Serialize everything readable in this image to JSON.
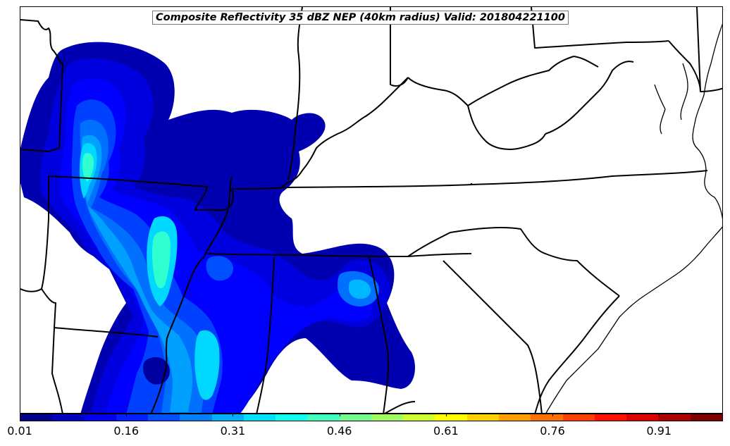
{
  "title": "Composite Reflectivity 35 dBZ NEP (40km radius) Valid: 201804221100",
  "colorbar": {
    "colors": [
      "#00008f",
      "#0000bf",
      "#0000ef",
      "#0020ff",
      "#0050ff",
      "#0080ff",
      "#00b0ff",
      "#00e0ff",
      "#10ffef",
      "#40ffbf",
      "#70ff8f",
      "#a0ff60",
      "#d0ff30",
      "#ffff00",
      "#ffd000",
      "#ffa000",
      "#ff7000",
      "#ff4000",
      "#ff1000",
      "#df0000",
      "#af0000",
      "#800000"
    ],
    "tick_labels": [
      "0.01",
      "0.16",
      "0.31",
      "0.46",
      "0.61",
      "0.76",
      "0.91"
    ],
    "tick_values": [
      0.01,
      0.16,
      0.31,
      0.46,
      0.61,
      0.76,
      0.91
    ],
    "range": [
      0.01,
      1.0
    ]
  }
}
